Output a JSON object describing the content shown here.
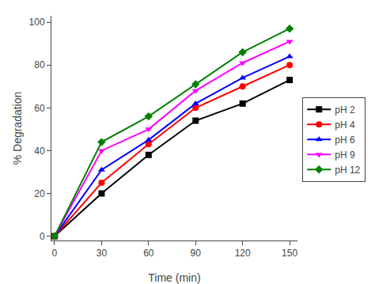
{
  "chart_data": {
    "type": "line",
    "xlabel": "Time (min)",
    "ylabel": "% Degradation",
    "x": [
      0,
      30,
      60,
      90,
      120,
      150
    ],
    "series": [
      {
        "name": "pH 2",
        "color": "#000000",
        "marker": "square",
        "values": [
          0,
          20,
          38,
          54,
          62,
          73
        ]
      },
      {
        "name": "pH 4",
        "color": "#ff0000",
        "marker": "circle",
        "values": [
          0,
          25,
          43,
          60,
          70,
          80
        ]
      },
      {
        "name": "pH 6",
        "color": "#0000ff",
        "marker": "triangle-up",
        "values": [
          0,
          31,
          45,
          62,
          74,
          84
        ]
      },
      {
        "name": "pH 9",
        "color": "#ff00ff",
        "marker": "triangle-down",
        "values": [
          0,
          40,
          50,
          68,
          81,
          91
        ]
      },
      {
        "name": "pH 12",
        "color": "#008000",
        "marker": "diamond",
        "values": [
          0,
          44,
          56,
          71,
          86,
          97
        ]
      }
    ],
    "xlim": [
      -2,
      155
    ],
    "ylim": [
      -2,
      103
    ],
    "xticks": [
      0,
      30,
      60,
      90,
      120,
      150
    ],
    "yticks": [
      0,
      20,
      40,
      60,
      80,
      100
    ],
    "grid": false,
    "legend": "right"
  }
}
